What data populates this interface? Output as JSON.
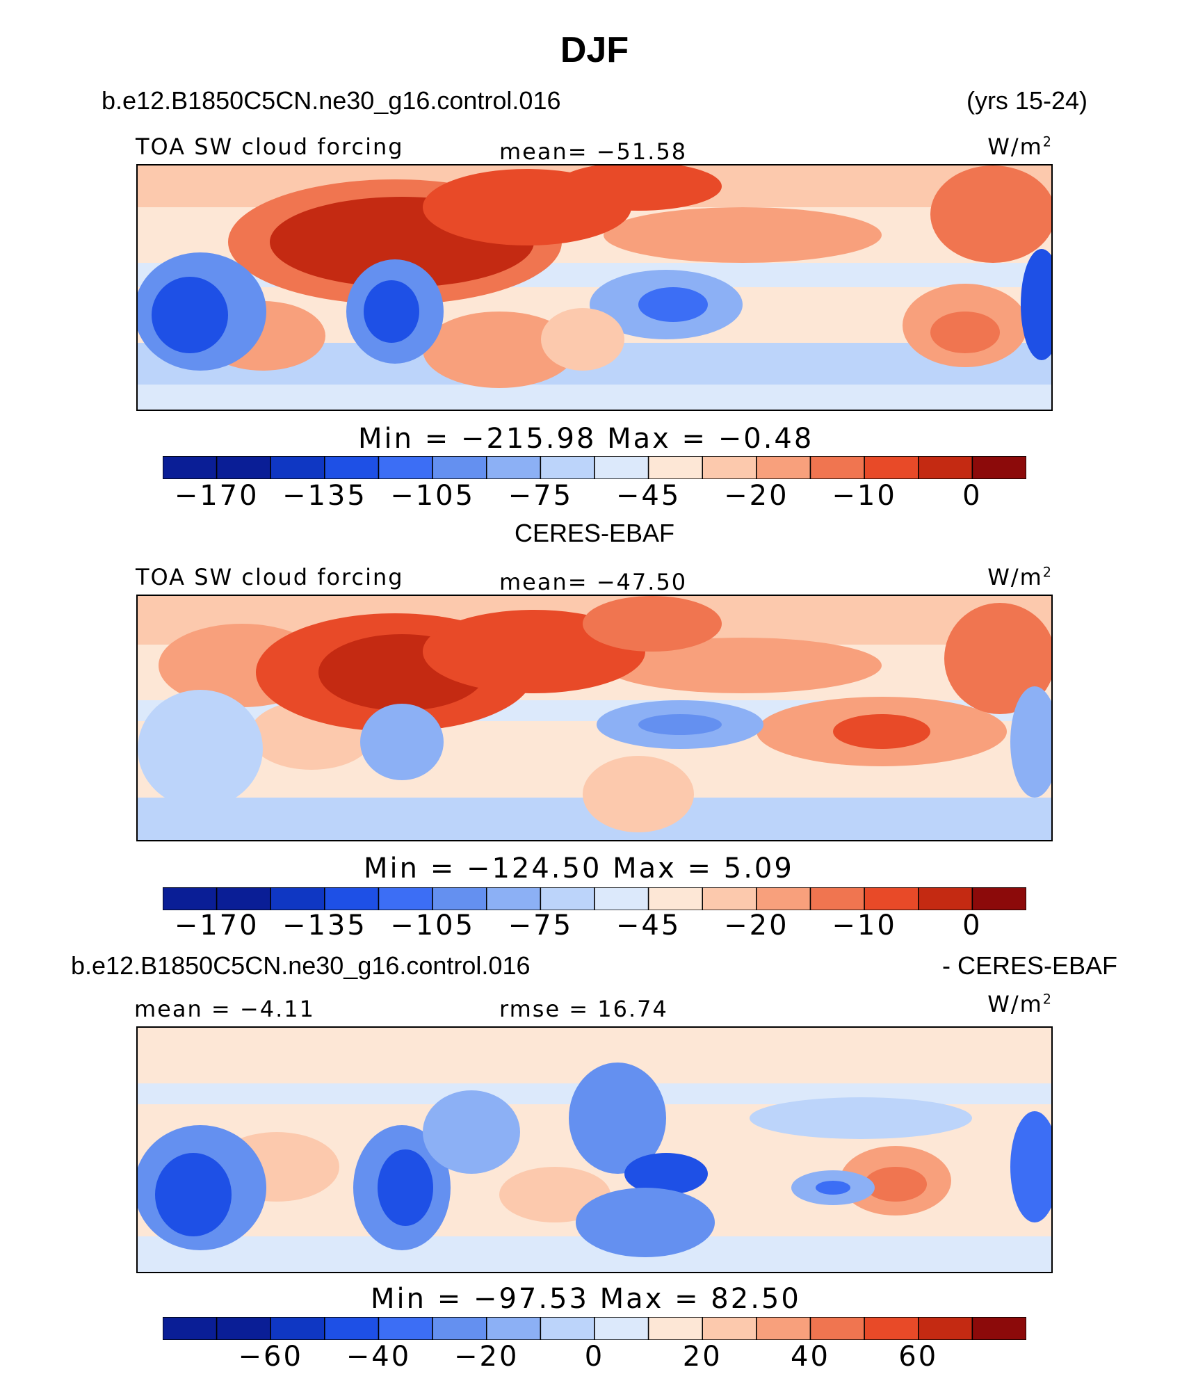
{
  "title": "DJF",
  "panels": [
    {
      "id": "model",
      "case_name": "b.e12.B1850C5CN.ne30_g16.control.016",
      "years": "(yrs 15-24)",
      "left_label": "TOA SW cloud forcing",
      "center_label": "mean= −51.58",
      "units": "W/m",
      "units_sup": "2",
      "minmax": "Min  =  −215.98  Max  =    −0.48",
      "colorbar_ticks": [
        "−170",
        "−135",
        "−105",
        "−75",
        "−45",
        "−20",
        "−10",
        "0"
      ]
    },
    {
      "id": "obs",
      "case_name": "CERES-EBAF",
      "left_label": "TOA SW cloud forcing",
      "center_label": "mean= −47.50",
      "units": "W/m",
      "units_sup": "2",
      "minmax": "Min  =  −124.50  Max  =      5.09",
      "colorbar_ticks": [
        "−170",
        "−135",
        "−105",
        "−75",
        "−45",
        "−20",
        "−10",
        "0"
      ]
    },
    {
      "id": "diff",
      "case_name": "b.e12.B1850C5CN.ne30_g16.control.016",
      "case_suffix": "- CERES-EBAF",
      "left_label": "mean  =   −4.11",
      "center_label": "rmse  =   16.74",
      "units": "W/m",
      "units_sup": "2",
      "minmax": "Min  =  −97.53  Max  =   82.50",
      "colorbar_ticks": [
        "−60",
        "−40",
        "−20",
        "0",
        "20",
        "40",
        "60"
      ]
    }
  ],
  "chart_data": [
    {
      "type": "heatmap",
      "title": "TOA SW cloud forcing",
      "subtitle": "b.e12.B1850C5CN.ne30_g16.control.016 (yrs 15-24)",
      "units": "W/m2",
      "mean": -51.58,
      "min": -215.98,
      "max": -0.48,
      "contour_levels": [
        -170,
        -150,
        -135,
        -120,
        -105,
        -90,
        -75,
        -60,
        -45,
        -30,
        -20,
        -15,
        -10,
        -5,
        0
      ],
      "colorbar_labels": [
        -170,
        -135,
        -105,
        -75,
        -45,
        -20,
        -10,
        0
      ]
    },
    {
      "type": "heatmap",
      "title": "TOA SW cloud forcing",
      "subtitle": "CERES-EBAF",
      "units": "W/m2",
      "mean": -47.5,
      "min": -124.5,
      "max": 5.09,
      "contour_levels": [
        -170,
        -150,
        -135,
        -120,
        -105,
        -90,
        -75,
        -60,
        -45,
        -30,
        -20,
        -15,
        -10,
        -5,
        0
      ],
      "colorbar_labels": [
        -170,
        -135,
        -105,
        -75,
        -45,
        -20,
        -10,
        0
      ]
    },
    {
      "type": "heatmap",
      "title": "b.e12.B1850C5CN.ne30_g16.control.016 - CERES-EBAF",
      "units": "W/m2",
      "mean": -4.11,
      "rmse": 16.74,
      "min": -97.53,
      "max": 82.5,
      "contour_levels": [
        -70,
        -60,
        -50,
        -40,
        -30,
        -20,
        -10,
        0,
        10,
        20,
        30,
        40,
        50,
        60,
        70
      ],
      "colorbar_labels": [
        -60,
        -40,
        -20,
        0,
        20,
        40,
        60
      ]
    }
  ],
  "colors": {
    "palette": [
      "#0a1e96",
      "#0f37c3",
      "#1e50e6",
      "#3c6ef5",
      "#6490f0",
      "#8cb0f5",
      "#bcd4fa",
      "#dce9fb",
      "#fde7d6",
      "#fcc9ad",
      "#f8a07c",
      "#f07550",
      "#e84a28",
      "#c42a12",
      "#8c0a0a"
    ]
  }
}
